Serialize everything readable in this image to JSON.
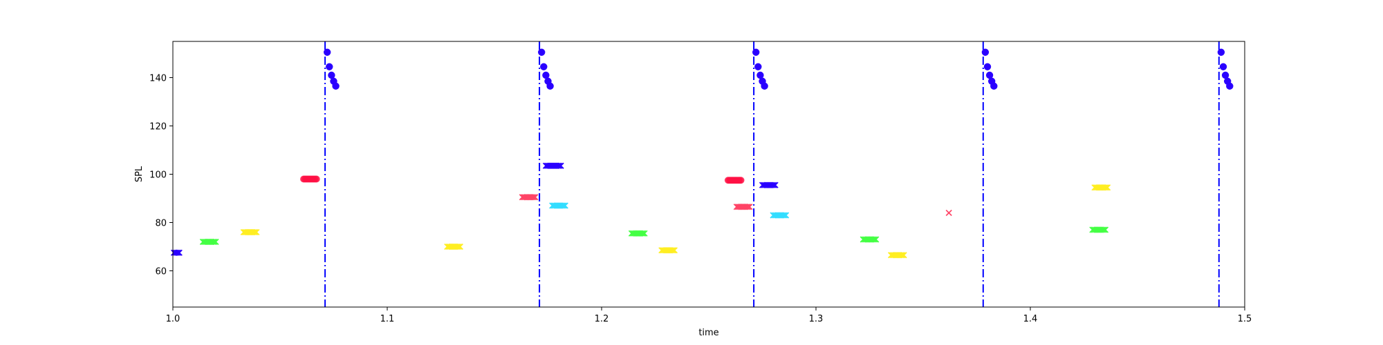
{
  "chart_data": {
    "type": "scatter",
    "xlabel": "time",
    "ylabel": "SPL",
    "xlim": [
      1.0,
      1.5
    ],
    "ylim": [
      45,
      155
    ],
    "x_ticks": [
      1.0,
      1.1,
      1.2,
      1.3,
      1.4,
      1.5
    ],
    "x_tick_labels": [
      "1.0",
      "1.1",
      "1.2",
      "1.3",
      "1.4",
      "1.5"
    ],
    "y_ticks": [
      60,
      80,
      100,
      120,
      140
    ],
    "y_tick_labels": [
      "60",
      "80",
      "100",
      "120",
      "140"
    ],
    "grid": false,
    "vertical_lines": {
      "color": "#0000ff",
      "style": "dash-dot",
      "x": [
        1.071,
        1.171,
        1.271,
        1.378,
        1.488
      ]
    },
    "onset_markers": {
      "color": "#2a00ff",
      "marker": "circle",
      "points": [
        [
          1.072,
          150.5
        ],
        [
          1.073,
          144.5
        ],
        [
          1.074,
          141
        ],
        [
          1.075,
          138.5
        ],
        [
          1.076,
          136.5
        ],
        [
          1.172,
          150.5
        ],
        [
          1.173,
          144.5
        ],
        [
          1.174,
          141
        ],
        [
          1.175,
          138.5
        ],
        [
          1.176,
          136.5
        ],
        [
          1.272,
          150.5
        ],
        [
          1.273,
          144.5
        ],
        [
          1.274,
          141
        ],
        [
          1.275,
          138.5
        ],
        [
          1.276,
          136.5
        ],
        [
          1.379,
          150.5
        ],
        [
          1.38,
          144.5
        ],
        [
          1.381,
          141
        ],
        [
          1.382,
          138.5
        ],
        [
          1.383,
          136.5
        ],
        [
          1.489,
          150.5
        ],
        [
          1.49,
          144.5
        ],
        [
          1.491,
          141
        ],
        [
          1.492,
          138.5
        ],
        [
          1.493,
          136.5
        ]
      ]
    },
    "note_markers": [
      {
        "marker": "x",
        "color": "#2a00ff",
        "x": [
          1.0005,
          1.003
        ],
        "y": 67.5
      },
      {
        "marker": "x",
        "color": "#44ff44",
        "x": [
          1.014,
          1.02
        ],
        "y": 72
      },
      {
        "marker": "x",
        "color": "#ffee22",
        "x": [
          1.033,
          1.039
        ],
        "y": 76
      },
      {
        "marker": "circle",
        "color": "#ff1144",
        "x": [
          1.061,
          1.067
        ],
        "y": 98
      },
      {
        "marker": "x",
        "color": "#ffee22",
        "x": [
          1.128,
          1.134
        ],
        "y": 70
      },
      {
        "marker": "x",
        "color": "#ff4466",
        "x": [
          1.163,
          1.169
        ],
        "y": 90.5
      },
      {
        "marker": "x",
        "color": "#2a00ff",
        "x": [
          1.174,
          1.181
        ],
        "y": 103.5
      },
      {
        "marker": "x",
        "color": "#33ddff",
        "x": [
          1.177,
          1.183
        ],
        "y": 87
      },
      {
        "marker": "x",
        "color": "#44ff44",
        "x": [
          1.214,
          1.22
        ],
        "y": 75.5
      },
      {
        "marker": "x",
        "color": "#ffee22",
        "x": [
          1.228,
          1.234
        ],
        "y": 68.5
      },
      {
        "marker": "circle",
        "color": "#ff1144",
        "x": [
          1.259,
          1.265
        ],
        "y": 97.5
      },
      {
        "marker": "x",
        "color": "#ff4466",
        "x": [
          1.263,
          1.269
        ],
        "y": 86.5
      },
      {
        "marker": "x",
        "color": "#2a00ff",
        "x": [
          1.275,
          1.281
        ],
        "y": 95.5
      },
      {
        "marker": "x",
        "color": "#33ddff",
        "x": [
          1.28,
          1.286
        ],
        "y": 83
      },
      {
        "marker": "x",
        "color": "#44ff44",
        "x": [
          1.322,
          1.328
        ],
        "y": 73
      },
      {
        "marker": "x",
        "color": "#ffee22",
        "x": [
          1.335,
          1.341
        ],
        "y": 66.5
      },
      {
        "marker": "x",
        "color": "#ff4466",
        "x": [
          1.362,
          1.362
        ],
        "y": 84
      },
      {
        "marker": "x",
        "color": "#44ff44",
        "x": [
          1.429,
          1.435
        ],
        "y": 77
      },
      {
        "marker": "x",
        "color": "#ffee22",
        "x": [
          1.43,
          1.436
        ],
        "y": 94.5
      }
    ]
  }
}
